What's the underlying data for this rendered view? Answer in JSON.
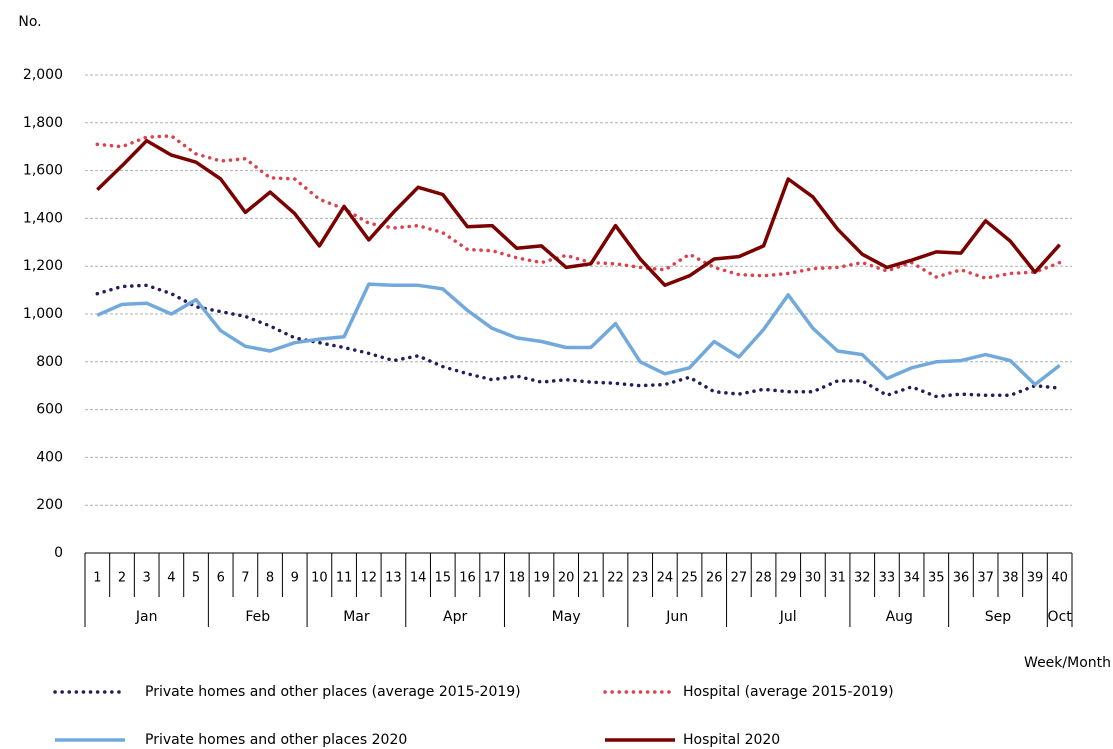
{
  "chart_data": {
    "type": "line",
    "y_label": "No.",
    "x_label": "Week/Month",
    "category_groups": [
      {
        "name": "Jan",
        "categories": [
          "1",
          "2",
          "3",
          "4",
          "5"
        ]
      },
      {
        "name": "Feb",
        "categories": [
          "6",
          "7",
          "8",
          "9"
        ]
      },
      {
        "name": "Mar",
        "categories": [
          "10",
          "11",
          "12",
          "13"
        ]
      },
      {
        "name": "Apr",
        "categories": [
          "14",
          "15",
          "16",
          "17"
        ]
      },
      {
        "name": "May",
        "categories": [
          "18",
          "19",
          "20",
          "21",
          "22"
        ]
      },
      {
        "name": "Jun",
        "categories": [
          "23",
          "24",
          "25",
          "26"
        ]
      },
      {
        "name": "Jul",
        "categories": [
          "27",
          "28",
          "29",
          "30",
          "31"
        ]
      },
      {
        "name": "Aug",
        "categories": [
          "32",
          "33",
          "34",
          "35"
        ]
      },
      {
        "name": "Sep",
        "categories": [
          "36",
          "37",
          "38",
          "39"
        ]
      },
      {
        "name": "Oct",
        "categories": [
          "40"
        ]
      }
    ],
    "series": [
      {
        "name": "Private homes and other places (average 2015-2019)",
        "color": "#1f1f5c",
        "dashed": true,
        "values": [
          1085,
          1115,
          1120,
          1085,
          1030,
          1010,
          990,
          950,
          900,
          880,
          860,
          835,
          805,
          825,
          780,
          750,
          725,
          740,
          715,
          725,
          715,
          710,
          700,
          705,
          735,
          675,
          665,
          685,
          675,
          675,
          720,
          720,
          660,
          695,
          655,
          665,
          660,
          660,
          700,
          690
        ]
      },
      {
        "name": "Hospital (average 2015-2019)",
        "color": "#e0404c",
        "dashed": true,
        "values": [
          1710,
          1700,
          1740,
          1745,
          1670,
          1640,
          1650,
          1570,
          1565,
          1480,
          1440,
          1380,
          1360,
          1370,
          1340,
          1270,
          1265,
          1235,
          1215,
          1245,
          1215,
          1210,
          1195,
          1185,
          1250,
          1195,
          1165,
          1160,
          1170,
          1190,
          1195,
          1215,
          1180,
          1215,
          1155,
          1185,
          1150,
          1170,
          1175,
          1215
        ]
      },
      {
        "name": "Private homes and other places 2020",
        "color": "#72a9dc",
        "dashed": false,
        "values": [
          995,
          1040,
          1045,
          1000,
          1060,
          930,
          865,
          845,
          880,
          895,
          905,
          1125,
          1120,
          1120,
          1105,
          1015,
          940,
          900,
          885,
          860,
          860,
          960,
          800,
          750,
          775,
          885,
          820,
          935,
          1080,
          940,
          845,
          830,
          730,
          775,
          800,
          805,
          830,
          805,
          705,
          785
        ]
      },
      {
        "name": "Hospital 2020",
        "color": "#7b0000",
        "dashed": false,
        "values": [
          1520,
          1620,
          1725,
          1665,
          1635,
          1565,
          1425,
          1510,
          1420,
          1285,
          1450,
          1310,
          1425,
          1530,
          1500,
          1365,
          1370,
          1275,
          1285,
          1195,
          1210,
          1370,
          1230,
          1120,
          1160,
          1230,
          1240,
          1285,
          1565,
          1490,
          1355,
          1250,
          1195,
          1225,
          1260,
          1255,
          1390,
          1305,
          1175,
          1290
        ]
      }
    ],
    "ylim": [
      0,
      2000
    ],
    "yticks": [
      0,
      200,
      400,
      600,
      800,
      {
        "value": 1000,
        "label": "1,000"
      },
      {
        "value": 1200,
        "label": "1,200"
      },
      {
        "value": 1400,
        "label": "1,400"
      },
      {
        "value": 1600,
        "label": "1,600"
      },
      {
        "value": 1800,
        "label": "1,800"
      },
      {
        "value": 2000,
        "label": "2,000"
      }
    ],
    "grid": true
  }
}
